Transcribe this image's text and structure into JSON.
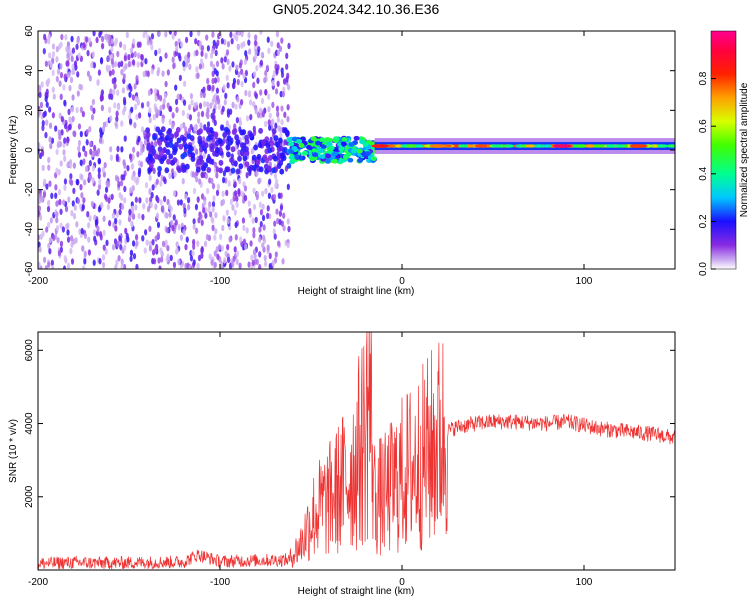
{
  "figure": {
    "title": "GN05.2024.342.10.36.E36"
  },
  "chart_data": [
    {
      "type": "heatmap",
      "xlabel": "Height of straight line (km)",
      "ylabel": "Frequency (Hz)",
      "xlim": [
        -200,
        150
      ],
      "ylim": [
        -60,
        60
      ],
      "xticks": [
        -200,
        -100,
        0,
        100
      ],
      "yticks": [
        -60,
        -40,
        -20,
        0,
        20,
        40,
        60
      ],
      "grid": false,
      "colorbar": {
        "label": "Normalized spectral amplitude",
        "range": [
          0.0,
          1.0
        ],
        "ticks": [
          0.0,
          0.2,
          0.4,
          0.6,
          0.8
        ],
        "colormap": "hsv-rainbow (purple -> blue -> cyan -> green -> yellow -> orange -> red -> magenta)"
      },
      "regions": [
        {
          "x_range": [
            -200,
            -62
          ],
          "freq_range": [
            -60,
            60
          ],
          "amplitude": "low (scattered noise)"
        },
        {
          "x_range": [
            -62,
            -15
          ],
          "freq_center": 0,
          "amplitude": "0.2-0.5"
        },
        {
          "x_range": [
            -15,
            150
          ],
          "freq_center": 2,
          "amplitude": "0.6-1.0 (narrow band)"
        }
      ]
    },
    {
      "type": "line",
      "xlabel": "Height of straight line (km)",
      "ylabel": "SNR (10 * v/v)",
      "xlim": [
        -200,
        150
      ],
      "ylim": [
        0,
        6500
      ],
      "xticks": [
        -200,
        -100,
        0,
        100
      ],
      "yticks": [
        2000,
        4000,
        6000
      ],
      "grid": false,
      "series": [
        {
          "color": "#ee3333",
          "x": [
            -200,
            -180,
            -160,
            -140,
            -120,
            -112,
            -100,
            -80,
            -62,
            -55,
            -50,
            -45,
            -40,
            -35,
            -30,
            -25,
            -20,
            -18,
            -15,
            -10,
            -5,
            0,
            10,
            20,
            25,
            30,
            40,
            50,
            60,
            70,
            80,
            90,
            100,
            110,
            120,
            130,
            140,
            150
          ],
          "values": [
            180,
            200,
            190,
            210,
            220,
            420,
            230,
            260,
            280,
            750,
            1400,
            1700,
            1900,
            2200,
            2500,
            3000,
            3800,
            5000,
            2000,
            2000,
            2300,
            2600,
            3000,
            3500,
            3800,
            3900,
            4000,
            4050,
            4050,
            4020,
            4000,
            4050,
            3950,
            3850,
            3800,
            3750,
            3700,
            3600
          ]
        }
      ]
    }
  ]
}
